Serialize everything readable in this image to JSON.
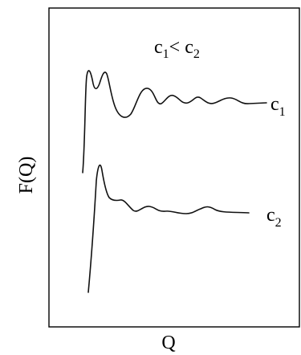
{
  "figure": {
    "condition": {
      "c1": "c",
      "sub1": "1",
      "lt": "<",
      "c2": " c",
      "sub2": "2"
    },
    "curves": [
      {
        "label": "c",
        "sub": "1"
      },
      {
        "label": "c",
        "sub": "2"
      }
    ],
    "y_axis_label": "F(Q)",
    "x_axis_label": "Q"
  }
}
